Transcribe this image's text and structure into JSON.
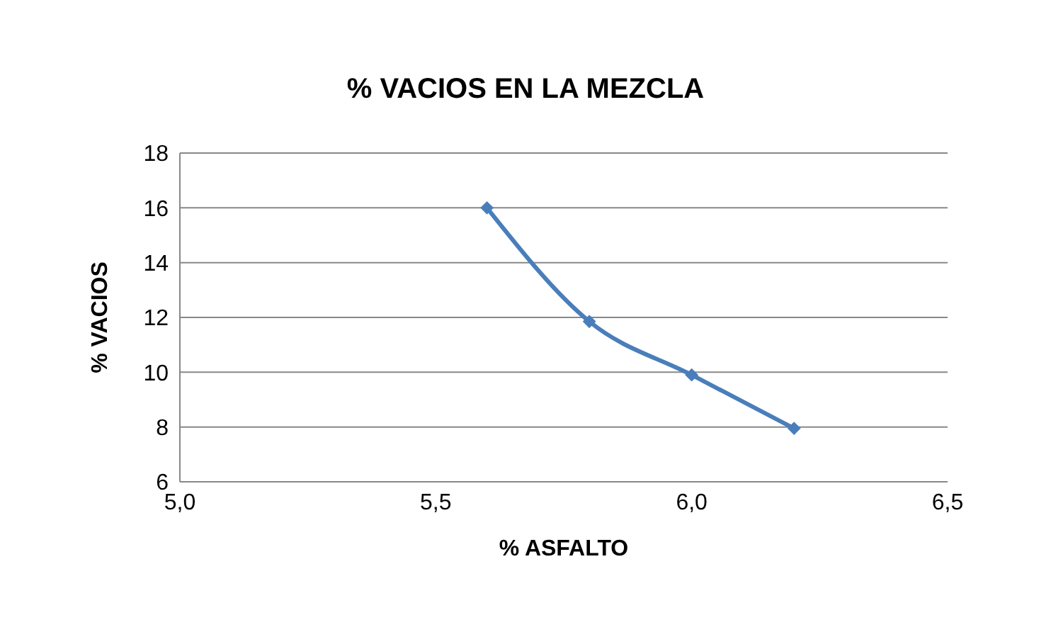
{
  "chart_data": {
    "type": "line",
    "title": "% VACIOS EN LA MEZCLA",
    "xlabel": "% ASFALTO",
    "ylabel": "%  VACIOS",
    "x": [
      5.6,
      5.8,
      6.0,
      6.2
    ],
    "series": [
      {
        "color": "#4a7ebb",
        "values": [
          16,
          11.85,
          9.9,
          7.95
        ]
      }
    ],
    "xlim": [
      5.0,
      6.5
    ],
    "xticks": [
      {
        "value": 5.0,
        "label": "5,0"
      },
      {
        "value": 5.5,
        "label": "5,5"
      },
      {
        "value": 6.0,
        "label": "6,0"
      },
      {
        "value": 6.5,
        "label": "6,5"
      }
    ],
    "ylim": [
      6,
      18
    ],
    "yticks": [
      6,
      8,
      10,
      12,
      14,
      16,
      18
    ],
    "grid": "y",
    "marker": "diamond",
    "line_style": "solid",
    "legend": false
  }
}
